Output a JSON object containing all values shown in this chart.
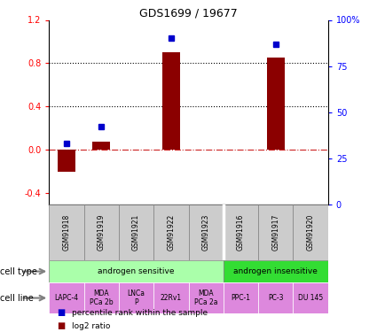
{
  "title": "GDS1699 / 19677",
  "samples": [
    "GSM91918",
    "GSM91919",
    "GSM91921",
    "GSM91922",
    "GSM91923",
    "GSM91916",
    "GSM91917",
    "GSM91920"
  ],
  "log2_ratio": [
    -0.2,
    0.08,
    0.0,
    0.9,
    0.0,
    0.0,
    0.85,
    0.0
  ],
  "percentile_rank_pct": [
    33,
    42,
    0,
    90,
    0,
    0,
    87,
    0
  ],
  "ylim_left": [
    -0.5,
    1.2
  ],
  "ylim_right": [
    0,
    100
  ],
  "yticks_left": [
    -0.4,
    0.0,
    0.4,
    0.8,
    1.2
  ],
  "yticks_right": [
    0,
    25,
    50,
    75,
    100
  ],
  "hline_values": [
    0.4,
    0.8
  ],
  "bar_color": "#8B0000",
  "dot_color": "#0000CC",
  "cell_type_groups": [
    {
      "label": "androgen sensitive",
      "start": 0,
      "end": 5,
      "color": "#AAFFAA"
    },
    {
      "label": "androgen insensitive",
      "start": 5,
      "end": 8,
      "color": "#33DD33"
    }
  ],
  "cell_lines": [
    {
      "label": "LAPC-4",
      "start": 0,
      "end": 1
    },
    {
      "label": "MDA\nPCa 2b",
      "start": 1,
      "end": 2
    },
    {
      "label": "LNCa\nP",
      "start": 2,
      "end": 3
    },
    {
      "label": "22Rv1",
      "start": 3,
      "end": 4
    },
    {
      "label": "MDA\nPCa 2a",
      "start": 4,
      "end": 5
    },
    {
      "label": "PPC-1",
      "start": 5,
      "end": 6
    },
    {
      "label": "PC-3",
      "start": 6,
      "end": 7
    },
    {
      "label": "DU 145",
      "start": 7,
      "end": 8
    }
  ],
  "cell_line_color": "#DD88DD",
  "sample_box_color": "#CCCCCC",
  "legend_items": [
    {
      "color": "#8B0000",
      "label": "log2 ratio",
      "marker": "s"
    },
    {
      "color": "#0000CC",
      "label": "percentile rank within the sample",
      "marker": "s"
    }
  ]
}
